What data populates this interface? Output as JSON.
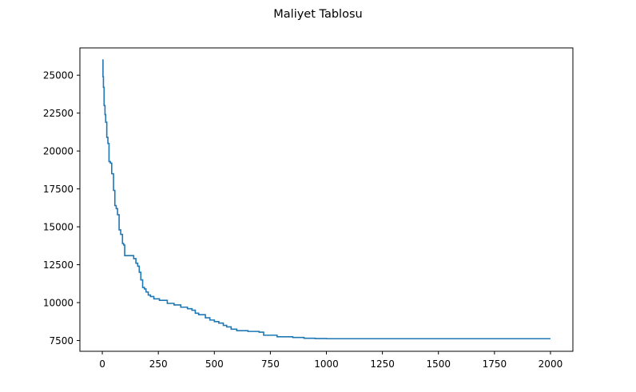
{
  "chart_data": {
    "type": "line",
    "title": "Maliyet Tablosu",
    "xlabel": "",
    "ylabel": "",
    "xlim": [
      -100,
      2100
    ],
    "ylim": [
      6790,
      26800
    ],
    "x_ticks": [
      0,
      250,
      500,
      750,
      1000,
      1250,
      1500,
      1750,
      2000
    ],
    "x_tick_labels": [
      "0",
      "250",
      "500",
      "750",
      "1000",
      "1250",
      "1500",
      "1750",
      "2000"
    ],
    "y_ticks": [
      7500,
      10000,
      12500,
      15000,
      17500,
      20000,
      22500,
      25000
    ],
    "y_tick_labels": [
      "7500",
      "10000",
      "12500",
      "15000",
      "17500",
      "20000",
      "22500",
      "25000"
    ],
    "grid": false,
    "series": [
      {
        "color": "#1f77b4",
        "x": [
          0,
          3,
          5,
          8,
          12,
          15,
          20,
          25,
          30,
          36,
          42,
          50,
          56,
          62,
          68,
          75,
          82,
          90,
          95,
          100,
          108,
          112,
          118,
          125,
          140,
          150,
          158,
          165,
          172,
          180,
          188,
          195,
          205,
          215,
          230,
          255,
          290,
          320,
          350,
          380,
          400,
          415,
          430,
          460,
          480,
          500,
          520,
          540,
          555,
          575,
          600,
          650,
          700,
          720,
          780,
          850,
          900,
          950,
          1000,
          1500,
          2000
        ],
        "y": [
          26000,
          24900,
          24200,
          23000,
          22400,
          21900,
          20900,
          20500,
          19300,
          19200,
          18500,
          17400,
          16400,
          16200,
          15800,
          14800,
          14500,
          13900,
          13800,
          13100,
          13100,
          13100,
          13100,
          13100,
          12900,
          12600,
          12400,
          12000,
          11500,
          11000,
          10900,
          10700,
          10500,
          10400,
          10250,
          10150,
          9950,
          9850,
          9700,
          9600,
          9500,
          9300,
          9200,
          9000,
          8850,
          8750,
          8650,
          8500,
          8400,
          8250,
          8150,
          8100,
          8050,
          7850,
          7750,
          7700,
          7650,
          7630,
          7620,
          7620,
          7620
        ]
      }
    ]
  }
}
